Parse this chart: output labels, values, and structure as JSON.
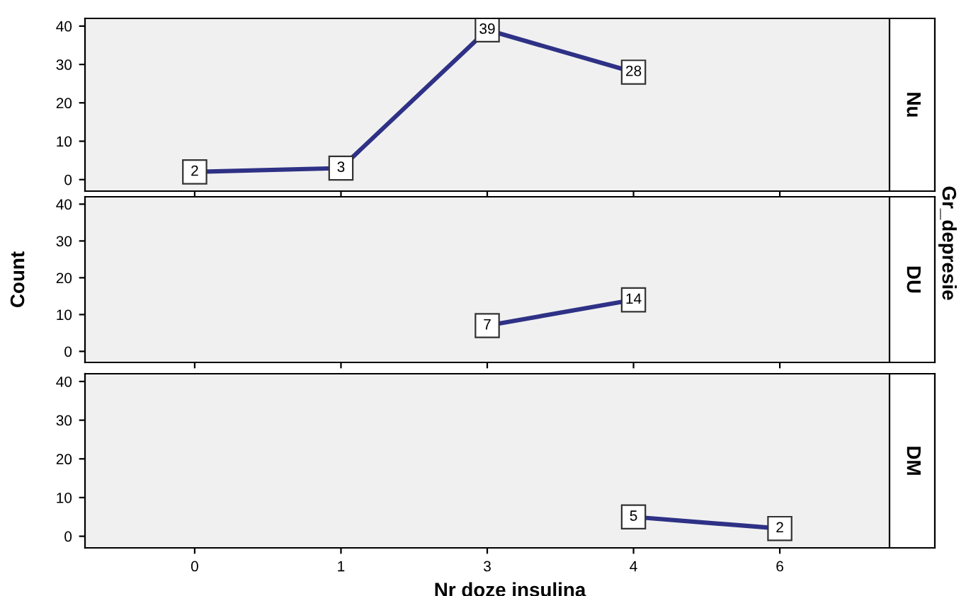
{
  "chart_data": [
    {
      "type": "line",
      "title": "Nu",
      "categories": [
        "0",
        "1",
        "3",
        "4",
        "6"
      ],
      "series": [
        {
          "color": "#2e3185",
          "values": [
            2,
            3,
            39,
            28,
            null
          ]
        }
      ],
      "ylim": [
        -3,
        42
      ],
      "yticks": [
        0,
        10,
        20,
        30,
        40
      ],
      "data_labels": true,
      "tick_labels": "y",
      "grid": false,
      "legend": false,
      "marker": "square",
      "line_style": "solid"
    },
    {
      "type": "line",
      "title": "DU",
      "ylabel": "Count",
      "annotations": [
        "Gr_depresie"
      ],
      "categories": [
        "0",
        "1",
        "3",
        "4",
        "6"
      ],
      "series": [
        {
          "color": "#2e3185",
          "values": [
            null,
            null,
            7,
            14,
            null
          ]
        }
      ],
      "ylim": [
        -3,
        42
      ],
      "yticks": [
        0,
        10,
        20,
        30,
        40
      ],
      "data_labels": true,
      "tick_labels": "y",
      "grid": false,
      "legend": false,
      "marker": "square",
      "line_style": "solid"
    },
    {
      "type": "line",
      "title": "DM",
      "xlabel": "Nr doze insulina",
      "categories": [
        "0",
        "1",
        "3",
        "4",
        "6"
      ],
      "series": [
        {
          "color": "#2e3185",
          "values": [
            null,
            null,
            null,
            5,
            2
          ]
        }
      ],
      "ylim": [
        -3,
        42
      ],
      "yticks": [
        0,
        10,
        20,
        30,
        40
      ],
      "data_labels": true,
      "grid": false,
      "legend": false,
      "marker": "square",
      "line_style": "solid"
    }
  ]
}
